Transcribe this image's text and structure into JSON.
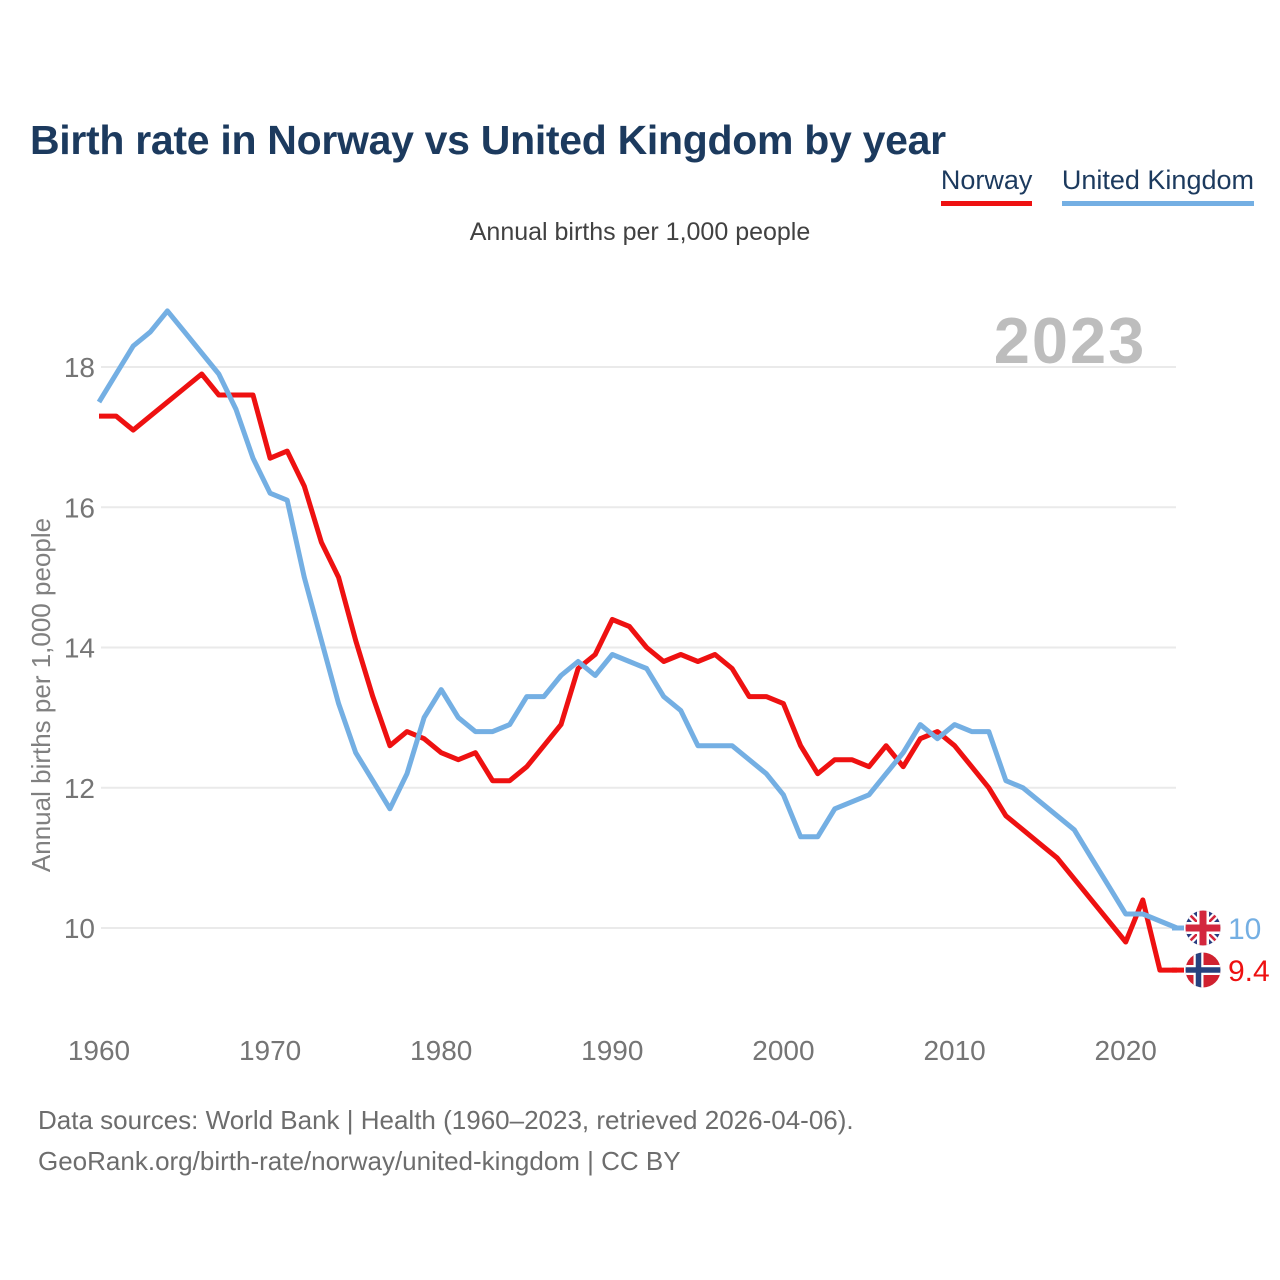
{
  "header": {
    "title": "Birth rate in Norway vs United Kingdom by year",
    "subtitle": "Annual births per 1,000 people"
  },
  "legend": [
    {
      "label": "Norway",
      "color": "#EE1111"
    },
    {
      "label": "United Kingdom",
      "color": "#74AFE3"
    }
  ],
  "watermark": "2023",
  "end_labels": {
    "uk": {
      "value": "10",
      "flag": "uk-flag",
      "color": "#74AFE3"
    },
    "norway": {
      "value": "9.4",
      "flag": "norway-flag",
      "color": "#EE1111"
    }
  },
  "footer": {
    "line1": "Data sources: World Bank | Health (1960–2023, retrieved 2026-04-06).",
    "line2": "GeoRank.org/birth-rate/norway/united-kingdom | CC BY"
  },
  "colors": {
    "norway_line": "#EE1111",
    "uk_line": "#74AFE3",
    "title_text": "#1C3A5E",
    "axis_text": "#757575",
    "gridline": "#EAEAEA",
    "watermark": "#BDBDBD"
  },
  "chart_data": {
    "type": "line",
    "title": "Birth rate in Norway vs United Kingdom by year",
    "ylabel": "Annual births per 1,000 people",
    "legend_position": "top-right",
    "grid": "horizontal-only",
    "x_ticks": [
      1960,
      1970,
      1980,
      1990,
      2000,
      2010,
      2020
    ],
    "y_ticks": [
      10,
      12,
      14,
      16,
      18
    ],
    "ylim": [
      8.5,
      19.1
    ],
    "xlim": [
      1960,
      2023
    ],
    "x": [
      1960,
      1961,
      1962,
      1963,
      1964,
      1965,
      1966,
      1967,
      1968,
      1969,
      1970,
      1971,
      1972,
      1973,
      1974,
      1975,
      1976,
      1977,
      1978,
      1979,
      1980,
      1981,
      1982,
      1983,
      1984,
      1985,
      1986,
      1987,
      1988,
      1989,
      1990,
      1991,
      1992,
      1993,
      1994,
      1995,
      1996,
      1997,
      1998,
      1999,
      2000,
      2001,
      2002,
      2003,
      2004,
      2005,
      2006,
      2007,
      2008,
      2009,
      2010,
      2011,
      2012,
      2013,
      2014,
      2015,
      2016,
      2017,
      2018,
      2019,
      2020,
      2021,
      2022,
      2023
    ],
    "series": [
      {
        "name": "Norway",
        "color": "#EE1111",
        "values": [
          17.3,
          17.3,
          17.1,
          17.3,
          17.5,
          17.7,
          17.9,
          17.6,
          17.6,
          17.6,
          16.7,
          16.8,
          16.3,
          15.5,
          15.0,
          14.1,
          13.3,
          12.6,
          12.8,
          12.7,
          12.5,
          12.4,
          12.5,
          12.1,
          12.1,
          12.3,
          12.6,
          12.9,
          13.7,
          13.9,
          14.4,
          14.3,
          14.0,
          13.8,
          13.9,
          13.8,
          13.9,
          13.7,
          13.3,
          13.3,
          13.2,
          12.6,
          12.2,
          12.4,
          12.4,
          12.3,
          12.6,
          12.3,
          12.7,
          12.8,
          12.6,
          12.3,
          12.0,
          11.6,
          11.4,
          11.2,
          11.0,
          10.7,
          10.4,
          10.1,
          9.8,
          10.4,
          9.4,
          9.4
        ]
      },
      {
        "name": "United Kingdom",
        "color": "#74AFE3",
        "values": [
          17.5,
          17.9,
          18.3,
          18.5,
          18.8,
          18.5,
          18.2,
          17.9,
          17.4,
          16.7,
          16.2,
          16.1,
          15.0,
          14.1,
          13.2,
          12.5,
          12.1,
          11.7,
          12.2,
          13.0,
          13.4,
          13.0,
          12.8,
          12.8,
          12.9,
          13.3,
          13.3,
          13.6,
          13.8,
          13.6,
          13.9,
          13.8,
          13.7,
          13.3,
          13.1,
          12.6,
          12.6,
          12.6,
          12.4,
          12.2,
          11.9,
          11.3,
          11.3,
          11.7,
          11.8,
          11.9,
          12.2,
          12.5,
          12.9,
          12.7,
          12.9,
          12.8,
          12.8,
          12.1,
          12.0,
          11.8,
          11.6,
          11.4,
          11.0,
          10.6,
          10.2,
          10.2,
          10.1,
          10.0
        ]
      }
    ]
  }
}
